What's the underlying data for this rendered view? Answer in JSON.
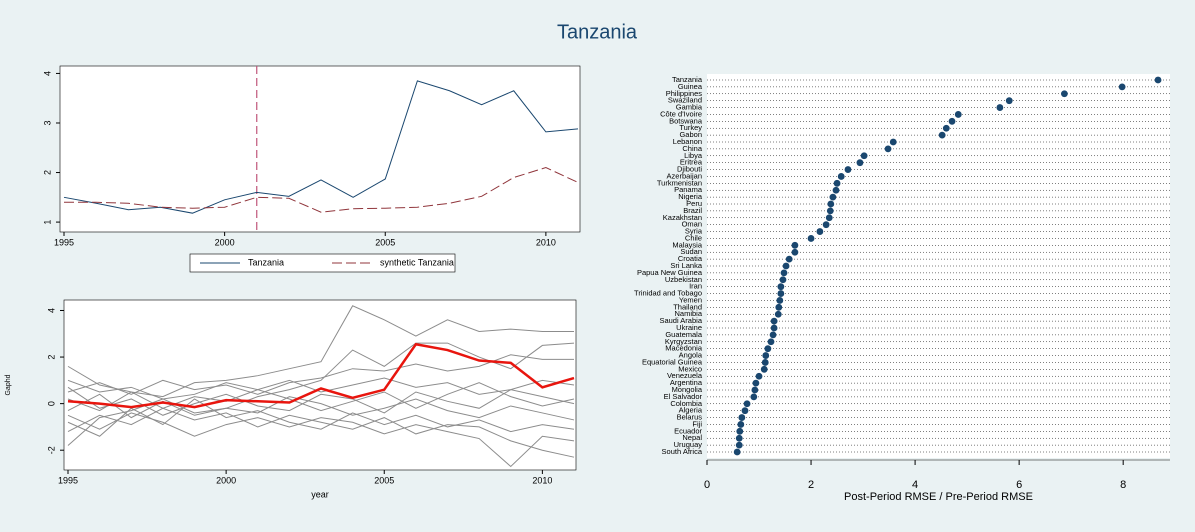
{
  "title": "Tanzania",
  "chart_data": [
    {
      "type": "line",
      "x": [
        1995,
        1996,
        1997,
        1998,
        1999,
        2000,
        2001,
        2002,
        2003,
        2004,
        2005,
        2006,
        2007,
        2008,
        2009,
        2010,
        2011
      ],
      "series": [
        {
          "name": "Tanzania",
          "color": "#1a476f",
          "linestyle": "solid",
          "values": [
            1.5,
            1.38,
            1.25,
            1.3,
            1.18,
            1.45,
            1.6,
            1.52,
            1.85,
            1.5,
            1.87,
            3.85,
            3.65,
            3.37,
            3.65,
            2.82,
            2.88
          ]
        },
        {
          "name": "synthetic Tanzania",
          "color": "#90353b",
          "linestyle": "dashed",
          "values": [
            1.4,
            1.4,
            1.38,
            1.3,
            1.28,
            1.3,
            1.5,
            1.48,
            1.2,
            1.27,
            1.28,
            1.3,
            1.38,
            1.52,
            1.9,
            2.1,
            1.8
          ]
        }
      ],
      "xlim": [
        1995,
        2011
      ],
      "xticks": [
        1995,
        2000,
        2005,
        2010
      ],
      "ylim": [
        0.8,
        4.15
      ],
      "yticks": [
        1,
        2,
        3,
        4
      ],
      "vline": 2001,
      "vline_color": "#c0567a",
      "legend": "bottom"
    },
    {
      "type": "line",
      "y_label": "Gaphd",
      "x_label": "year",
      "x": [
        1995,
        1996,
        1997,
        1998,
        1999,
        2000,
        2001,
        2002,
        2003,
        2004,
        2005,
        2006,
        2007,
        2008,
        2009,
        2010,
        2011
      ],
      "series": [
        {
          "color": "#8c8c8c",
          "width": 1,
          "values": [
            1.6,
            0.8,
            0.5,
            0.3,
            0.9,
            1.0,
            1.2,
            1.5,
            1.8,
            4.2,
            3.6,
            2.9,
            3.6,
            3.1,
            3.2,
            3.1,
            3.1
          ]
        },
        {
          "color": "#8c8c8c",
          "width": 1,
          "values": [
            -1.8,
            -0.6,
            -0.3,
            0.2,
            -0.4,
            -0.2,
            0.3,
            0.6,
            1.0,
            2.3,
            1.6,
            2.6,
            2.6,
            2.0,
            1.5,
            2.5,
            2.6
          ]
        },
        {
          "color": "#8c8c8c",
          "width": 1,
          "values": [
            0.5,
            0.9,
            0.4,
            1.0,
            0.6,
            0.8,
            0.4,
            0.9,
            1.1,
            1.5,
            1.4,
            1.7,
            1.4,
            1.6,
            2.1,
            1.9,
            1.9
          ]
        },
        {
          "color": "#8c8c8c",
          "width": 1,
          "values": [
            -0.5,
            -1.1,
            -0.4,
            -0.8,
            -1.4,
            -0.9,
            -0.6,
            -1.0,
            -0.6,
            -0.8,
            -1.3,
            -0.9,
            -1.2,
            -1.5,
            -2.7,
            -1.4,
            -1.6
          ]
        },
        {
          "color": "#8c8c8c",
          "width": 1,
          "values": [
            0.2,
            -0.3,
            0.5,
            -0.2,
            0.3,
            0.1,
            0.6,
            0.2,
            -0.3,
            0.1,
            0.5,
            -0.2,
            0.4,
            0.9,
            0.3,
            -0.1,
            0.2
          ]
        },
        {
          "color": "#8c8c8c",
          "width": 1,
          "values": [
            -1.2,
            -0.5,
            -0.9,
            -0.2,
            -0.7,
            -0.4,
            -1.0,
            -0.5,
            -0.8,
            -1.1,
            -0.6,
            -1.3,
            -0.9,
            -1.0,
            -1.6,
            -2.0,
            -2.3
          ]
        },
        {
          "color": "#8c8c8c",
          "width": 1,
          "values": [
            1.0,
            0.5,
            0.7,
            0.2,
            0.4,
            0.9,
            0.6,
            1.0,
            0.5,
            0.8,
            1.1,
            0.7,
            0.9,
            0.4,
            0.6,
            1.0,
            0.8
          ]
        },
        {
          "color": "#8c8c8c",
          "width": 1,
          "values": [
            -0.3,
            0.4,
            -0.6,
            0.1,
            -0.5,
            -0.2,
            -0.4,
            0.3,
            0.0,
            -0.5,
            -0.2,
            0.2,
            -0.3,
            -0.6,
            -0.1,
            -0.4,
            -0.7
          ]
        },
        {
          "color": "#8c8c8c",
          "width": 1,
          "values": [
            0.7,
            -0.2,
            0.2,
            -0.5,
            0.0,
            0.4,
            -0.1,
            -0.3,
            0.4,
            0.2,
            -0.4,
            0.5,
            0.1,
            -0.2,
            0.6,
            0.3,
            0.0
          ]
        },
        {
          "color": "#8c8c8c",
          "width": 1,
          "values": [
            -0.8,
            -1.4,
            -0.2,
            -0.9,
            0.2,
            -0.6,
            -0.3,
            -0.8,
            -1.1,
            -0.4,
            -0.9,
            -0.5,
            -1.0,
            -0.7,
            -1.2,
            -0.9,
            -1.1
          ]
        },
        {
          "color": "#e8150e",
          "width": 2.5,
          "values": [
            0.1,
            0.0,
            -0.15,
            0.05,
            -0.15,
            0.15,
            0.1,
            0.05,
            0.65,
            0.25,
            0.6,
            2.55,
            2.3,
            1.85,
            1.75,
            0.7,
            1.1
          ]
        }
      ],
      "xlim": [
        1995,
        2011
      ],
      "xticks": [
        1995,
        2000,
        2005,
        2010
      ],
      "ylim": [
        -2.85,
        4.45
      ],
      "yticks": [
        -2,
        0,
        2,
        4
      ]
    },
    {
      "type": "dot",
      "x_label": "Post-Period RMSE / Pre-Period RMSE",
      "color": "#1a476f",
      "categories": [
        "Tanzania",
        "Guinea",
        "Philippines",
        "Swaziland",
        "Gambia",
        "Côte d'Ivoire",
        "Botswana",
        "Turkey",
        "Gabon",
        "Lebanon",
        "China",
        "Libya",
        "Eritrea",
        "Djibouti",
        "Azerbaijan",
        "Turkmenistan",
        "Panama",
        "Nigeria",
        "Peru",
        "Brazil",
        "Kazakhstan",
        "Oman",
        "Syria",
        "Chile",
        "Malaysia",
        "Sudan",
        "Croatia",
        "Sri Lanka",
        "Papua New Guinea",
        "Uzbekistan",
        "Iran",
        "Trinidad and Tobago",
        "Yemen",
        "Thailand",
        "Namibia",
        "Saudi Arabia",
        "Ukraine",
        "Guatemala",
        "Kyrgyzstan",
        "Macedonia",
        "Angola",
        "Equatorial Guinea",
        "Mexico",
        "Venezuela",
        "Argentina",
        "Mongolia",
        "El Salvador",
        "Colombia",
        "Algeria",
        "Belarus",
        "Fiji",
        "Ecuador",
        "Nepal",
        "Uruguay",
        "South Africa"
      ],
      "values": [
        8.67,
        7.98,
        6.87,
        5.81,
        5.63,
        4.83,
        4.71,
        4.6,
        4.52,
        3.58,
        3.48,
        3.02,
        2.94,
        2.71,
        2.58,
        2.5,
        2.48,
        2.42,
        2.38,
        2.37,
        2.35,
        2.29,
        2.17,
        2.0,
        1.69,
        1.69,
        1.58,
        1.52,
        1.48,
        1.46,
        1.42,
        1.42,
        1.4,
        1.38,
        1.37,
        1.29,
        1.29,
        1.27,
        1.23,
        1.17,
        1.13,
        1.12,
        1.1,
        1.0,
        0.94,
        0.92,
        0.9,
        0.77,
        0.73,
        0.67,
        0.65,
        0.63,
        0.62,
        0.62,
        0.58
      ],
      "xlim": [
        0,
        8.9
      ],
      "xticks": [
        0,
        2,
        4,
        6,
        8
      ]
    }
  ]
}
